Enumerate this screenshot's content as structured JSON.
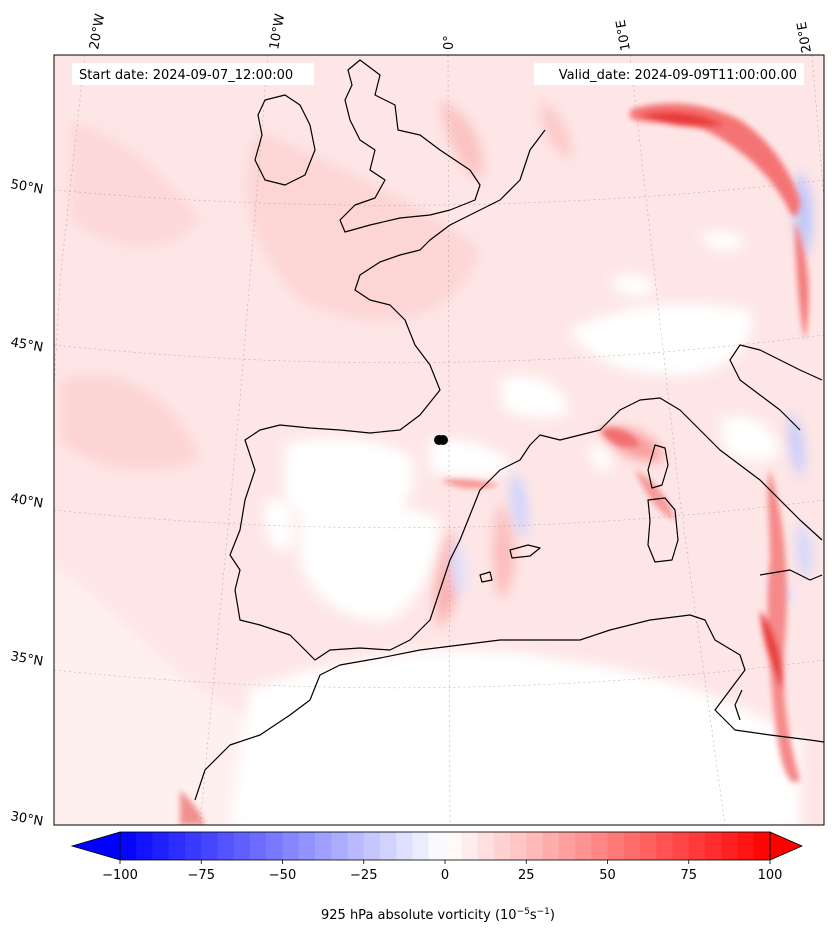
{
  "header": {
    "start_label": "Start date: 2024-09-07_12:00:00",
    "valid_label": "Valid_date: 2024-09-09T11:00:00.00"
  },
  "map": {
    "longitude_labels": [
      "20°W",
      "10°W",
      "0°",
      "10°E",
      "20°E"
    ],
    "latitude_labels": [
      "50°N",
      "45°N",
      "40°N",
      "35°N",
      "30°N"
    ],
    "field": "925 hPa absolute vorticity",
    "colors": {
      "negative": "#0000ff",
      "neutral": "#ffffff",
      "positive": "#ff0000",
      "coastline": "#000000"
    }
  },
  "colorbar": {
    "ticks": [
      "−100",
      "−75",
      "−50",
      "−25",
      "0",
      "25",
      "50",
      "75",
      "100"
    ],
    "min": -100,
    "max": 100,
    "title_main": "925 hPa absolute vorticity (10",
    "title_exp1": "−5",
    "title_mid": "s",
    "title_exp2": "−1",
    "title_end": ")"
  }
}
